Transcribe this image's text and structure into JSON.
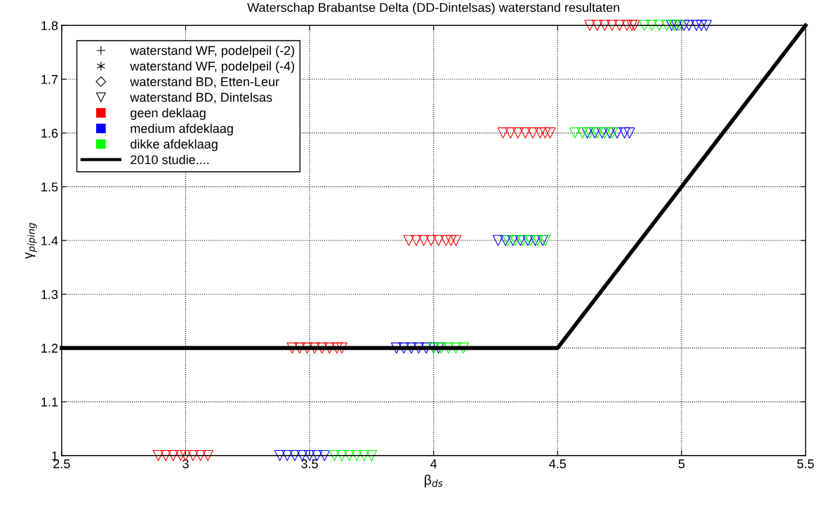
{
  "chart_data": {
    "type": "scatter",
    "title": "Waterschap Brabantse Delta (DD-Dintelsas) waterstand resultaten",
    "xlabel": "β$_{ds}$",
    "ylabel": "γ$_{piping}$",
    "xlim": [
      2.5,
      5.5
    ],
    "xticks": [
      2.5,
      3,
      3.5,
      4,
      4.5,
      5,
      5.5
    ],
    "ylim": [
      1,
      1.8
    ],
    "yticks": [
      1,
      1.1,
      1.2,
      1.3,
      1.4,
      1.5,
      1.6,
      1.7,
      1.8
    ],
    "grid": true,
    "legend": "top left",
    "line_style": "dotted",
    "series": [
      {
        "name": "waterstand WF, podelpeil (-2)",
        "color": "#000000",
        "marker": "cross"
      },
      {
        "name": "waterstand WF, podelpeil (-4)",
        "color": "#000000",
        "marker": "star"
      },
      {
        "name": "waterstand BD, Etten-Leur",
        "color": "#000000",
        "marker": "diamond"
      },
      {
        "name": "waterstand BD, Dintelsas",
        "color": "#000000",
        "marker": "triangle"
      },
      {
        "name": "geen deklaag",
        "color": "#ff0000",
        "marker": "square"
      },
      {
        "name": "medium afdeklaag",
        "color": "#0000ff",
        "marker": "square"
      },
      {
        "name": "dikke afdeklaag",
        "color": "#00ff00",
        "marker": "square"
      },
      {
        "color": "#ff0000",
        "marker": "triangle",
        "x": [
          2.89,
          2.92,
          2.95,
          2.98,
          3.0,
          3.03,
          3.06,
          3.09,
          3.43,
          3.46,
          3.49,
          3.52,
          3.55,
          3.58,
          3.61,
          3.63,
          3.9,
          3.93,
          3.96,
          3.99,
          4.02,
          4.05,
          4.07,
          4.09,
          4.28,
          4.31,
          4.34,
          4.37,
          4.4,
          4.43,
          4.45,
          4.47,
          4.63,
          4.66,
          4.69,
          4.72,
          4.75,
          4.78,
          4.8,
          4.81
        ],
        "values": [
          1,
          1,
          1,
          1,
          1,
          1,
          1,
          1,
          1.2,
          1.2,
          1.2,
          1.2,
          1.2,
          1.2,
          1.2,
          1.2,
          1.4,
          1.4,
          1.4,
          1.4,
          1.4,
          1.4,
          1.4,
          1.4,
          1.6,
          1.6,
          1.6,
          1.6,
          1.6,
          1.6,
          1.6,
          1.6,
          1.8,
          1.8,
          1.8,
          1.8,
          1.8,
          1.8,
          1.8,
          1.8
        ]
      },
      {
        "color": "#0000ff",
        "marker": "triangle",
        "x": [
          3.38,
          3.41,
          3.44,
          3.47,
          3.5,
          3.53,
          3.56,
          3.85,
          3.88,
          3.91,
          3.94,
          3.97,
          4.0,
          4.02,
          4.26,
          4.29,
          4.32,
          4.35,
          4.38,
          4.41,
          4.44,
          4.62,
          4.65,
          4.68,
          4.71,
          4.74,
          4.77,
          4.79,
          4.96,
          4.98,
          5.01,
          5.03,
          5.06,
          5.08,
          5.1
        ],
        "values": [
          1,
          1,
          1,
          1,
          1,
          1,
          1,
          1.2,
          1.2,
          1.2,
          1.2,
          1.2,
          1.2,
          1.2,
          1.4,
          1.4,
          1.4,
          1.4,
          1.4,
          1.4,
          1.4,
          1.6,
          1.6,
          1.6,
          1.6,
          1.6,
          1.6,
          1.6,
          1.8,
          1.8,
          1.8,
          1.8,
          1.8,
          1.8,
          1.8
        ]
      },
      {
        "color": "#00ff00",
        "marker": "triangle",
        "x": [
          3.6,
          3.63,
          3.66,
          3.69,
          3.72,
          3.75,
          4.0,
          4.03,
          4.06,
          4.09,
          4.12,
          4.3,
          4.33,
          4.36,
          4.39,
          4.42,
          4.45,
          4.57,
          4.6,
          4.63,
          4.66,
          4.69,
          4.72,
          4.85,
          4.88,
          4.91,
          4.94,
          4.97,
          4.99
        ],
        "values": [
          1,
          1,
          1,
          1,
          1,
          1,
          1.2,
          1.2,
          1.2,
          1.2,
          1.2,
          1.4,
          1.4,
          1.4,
          1.4,
          1.4,
          1.4,
          1.6,
          1.6,
          1.6,
          1.6,
          1.6,
          1.6,
          1.8,
          1.8,
          1.8,
          1.8,
          1.8,
          1.8
        ]
      },
      {
        "name": "2010 studie....",
        "type": "line",
        "color": "#000000",
        "line_style": "solid",
        "marker": "none",
        "x": [
          2.5,
          4.5,
          5.5
        ],
        "values": [
          1.2,
          1.2,
          1.8
        ]
      }
    ]
  }
}
